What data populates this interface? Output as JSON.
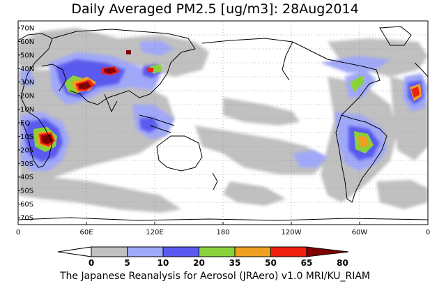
{
  "title": "Daily Averaged PM2.5 [ug/m3]: 28Aug2014",
  "footer": "The Japanese Reanalysis for Aerosol (JRAero) v1.0 MRI/KU_RIAM",
  "map": {
    "lat_labels": [
      "70N",
      "60N",
      "50N",
      "40N",
      "30N",
      "20N",
      "10N",
      "EQ",
      "10S",
      "20S",
      "30S",
      "40S",
      "50S",
      "60S",
      "70S"
    ],
    "lon_labels": [
      "0",
      "60E",
      "120E",
      "180",
      "120W",
      "60W",
      "0"
    ],
    "lon_range": [
      0,
      360
    ],
    "lat_range": [
      -75,
      75
    ],
    "gridlines": true
  },
  "legend": {
    "ticks": [
      "0",
      "5",
      "10",
      "20",
      "35",
      "50",
      "65",
      "80"
    ],
    "colors": [
      "#ffffff",
      "#c0c0c0",
      "#a0a8f8",
      "#5a5af0",
      "#8ad23a",
      "#f0a020",
      "#f02010",
      "#800000"
    ]
  }
}
